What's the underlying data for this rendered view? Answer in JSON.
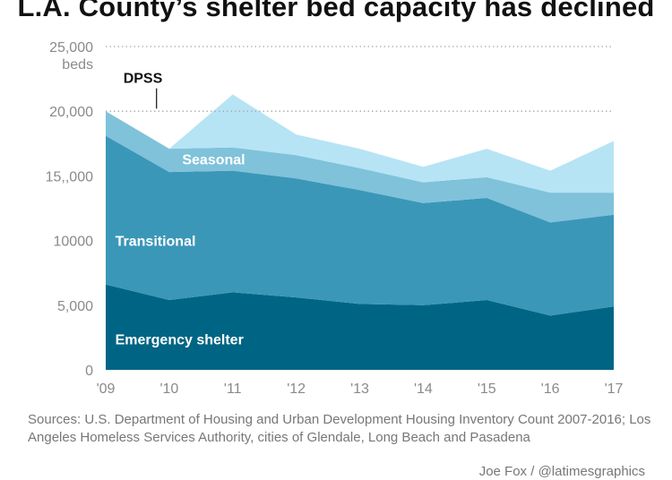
{
  "title": "L.A. County’s shelter bed capacity has declined",
  "source": "Sources: U.S. Department of Housing and Urban Development Housing Inventory Count 2007-2016; Los Angeles Homeless Services Authority, cities of Glendale, Long Beach and Pasadena",
  "credit": "Joe Fox / @latimesgraphics",
  "colors": {
    "emergency": "#006585",
    "transitional": "#3b97b8",
    "seasonal": "#7fc2da",
    "dpss": "#b6e4f4",
    "gridline": "#aaaaaa",
    "tick_text": "#8a8a8a"
  },
  "chart_data": {
    "type": "area",
    "stacked": true,
    "x": [
      "'09",
      "'10",
      "'11",
      "'12",
      "'13",
      "'14",
      "'15",
      "'16",
      "'17"
    ],
    "y_ticks": [
      {
        "value": 0,
        "label": "0"
      },
      {
        "value": 5000,
        "label": "5,000"
      },
      {
        "value": 10000,
        "label": "10000"
      },
      {
        "value": 15000,
        "label": "15,,000"
      },
      {
        "value": 20000,
        "label": "20,000"
      },
      {
        "value": 25000,
        "label": "25,000"
      }
    ],
    "y_unit_label": "beds",
    "ylim": [
      0,
      25000
    ],
    "grid": "dotted at 20,000 and 25,000",
    "series": [
      {
        "name": "Emergency shelter",
        "color_key": "emergency",
        "values": [
          6600,
          5400,
          6000,
          5600,
          5100,
          5000,
          5400,
          4200,
          4900
        ]
      },
      {
        "name": "Transitional",
        "color_key": "transitional",
        "values": [
          11500,
          9900,
          9400,
          9200,
          8800,
          7900,
          7900,
          7200,
          7100
        ]
      },
      {
        "name": "Seasonal",
        "color_key": "seasonal",
        "values": [
          1900,
          1800,
          1800,
          1800,
          1700,
          1600,
          1600,
          2300,
          1700
        ]
      },
      {
        "name": "DPSS",
        "color_key": "dpss",
        "values": [
          0,
          0,
          4100,
          1600,
          1500,
          1200,
          2200,
          1700,
          4000
        ]
      }
    ],
    "labels": [
      {
        "series": "Emergency shelter",
        "text": "Emergency shelter",
        "x": 0.15,
        "y": 2400,
        "anchor": "start"
      },
      {
        "series": "Transitional",
        "text": "Transitional",
        "x": 0.15,
        "y": 10000,
        "anchor": "start"
      },
      {
        "series": "Seasonal",
        "text": "Seasonal",
        "x": 1.7,
        "y": 16300,
        "anchor": "middle"
      }
    ],
    "annotation": {
      "text": "DPSS",
      "x": 0.8,
      "y": 20200,
      "pointer_from": 22600
    }
  }
}
